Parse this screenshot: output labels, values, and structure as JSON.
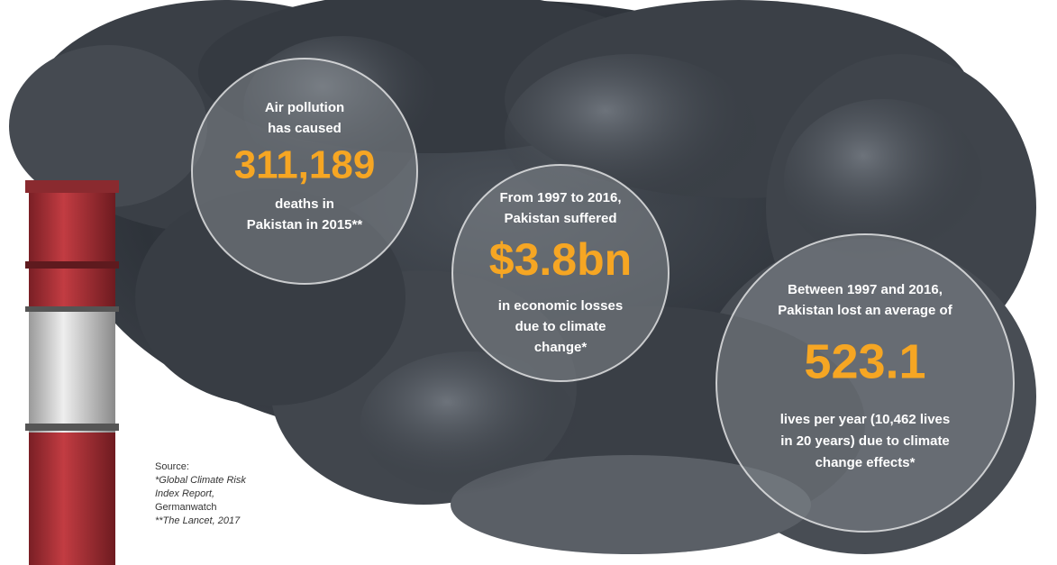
{
  "callouts": [
    {
      "lead": [
        "Air pollution",
        "has caused"
      ],
      "figure": "311,189",
      "tail": [
        "deaths in",
        "Pakistan in 2015**"
      ]
    },
    {
      "lead": [
        "From 1997 to 2016,",
        "Pakistan suffered"
      ],
      "figure": "$3.8bn",
      "tail": [
        "in economic losses",
        "due to climate",
        "change*"
      ]
    },
    {
      "lead": [
        "Between 1997 and 2016,",
        "Pakistan lost an average of"
      ],
      "figure": "523.1",
      "tail": [
        "lives per year (10,462 lives",
        "in 20 years) due to climate",
        "change effects*"
      ]
    }
  ],
  "source": {
    "heading": "Source:",
    "lines": [
      "*Global Climate Risk",
      "Index Report,",
      "Germanwatch",
      "**The Lancet, 2017"
    ]
  }
}
